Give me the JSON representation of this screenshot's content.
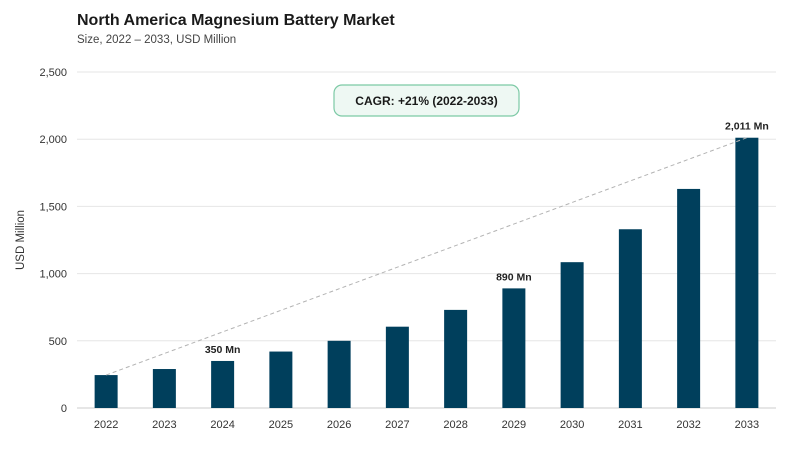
{
  "chart_data": {
    "type": "bar",
    "title": "North America Magnesium Battery Market",
    "subtitle": "Size, 2022 – 2033, USD Million",
    "ylabel": "USD Million",
    "xlabel": "",
    "ylim": [
      0,
      2500
    ],
    "yticks": [
      0,
      500,
      1000,
      1500,
      2000,
      2500
    ],
    "ytick_labels": [
      "0",
      "500",
      "1,000",
      "1,500",
      "2,000",
      "2,500"
    ],
    "grid": true,
    "legend": "none",
    "categories": [
      "2022",
      "2023",
      "2024",
      "2025",
      "2026",
      "2027",
      "2028",
      "2029",
      "2030",
      "2031",
      "2032",
      "2033"
    ],
    "values": [
      245,
      290,
      350,
      420,
      500,
      605,
      730,
      890,
      1085,
      1330,
      1630,
      2011
    ],
    "data_labels": [
      {
        "index": 2,
        "text": "350 Mn"
      },
      {
        "index": 7,
        "text": "890 Mn"
      },
      {
        "index": 11,
        "text": "2,011 Mn"
      }
    ],
    "annotation": {
      "text": "CAGR: +21% (2022-2033)"
    },
    "trend_line": {
      "from_index": 0,
      "to_index": 11
    },
    "colors": {
      "bar": "#003f5c",
      "grid": "#e6e6e6",
      "trend": "#b3b3b3",
      "badge_border": "#7cc9a5",
      "badge_fill": "#eef8f3"
    }
  }
}
